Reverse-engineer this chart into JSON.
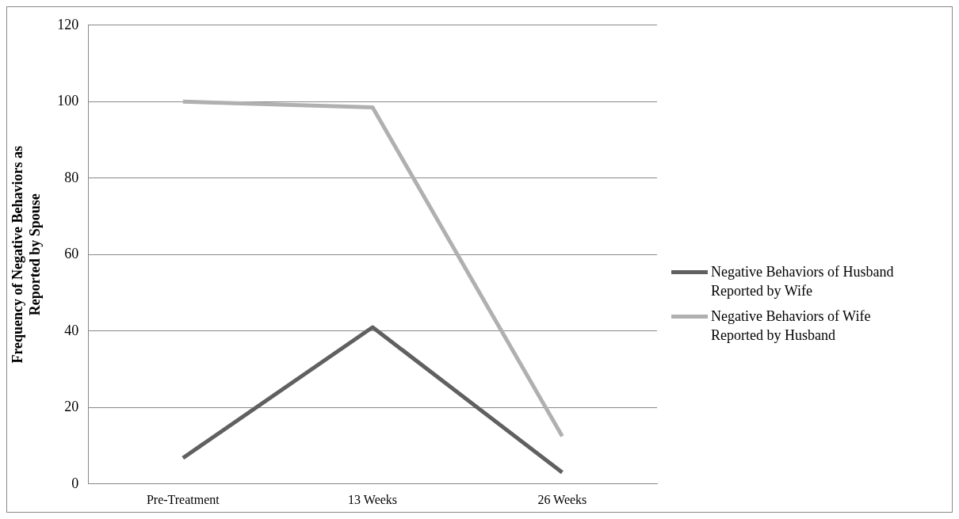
{
  "chart_data": {
    "type": "line",
    "ylabel": "Frequency of Negative Behaviors as Reported by Spouse",
    "categories": [
      "Pre-Treatment",
      "13 Weeks",
      "26 Weeks"
    ],
    "series": [
      {
        "name": "Negative Behaviors of Husband Reported by Wife",
        "color": "#606060",
        "values": [
          6.8,
          41,
          3
        ]
      },
      {
        "name": "Negative Behaviors of Wife Reported by Husband",
        "color": "#b0b0b0",
        "values": [
          100,
          98.5,
          12.5
        ]
      }
    ],
    "ylim": [
      0,
      120
    ],
    "yticks": [
      0,
      20,
      40,
      60,
      80,
      100,
      120
    ],
    "grid": "y",
    "legend": "right",
    "marker": "none",
    "line_style": "solid"
  }
}
